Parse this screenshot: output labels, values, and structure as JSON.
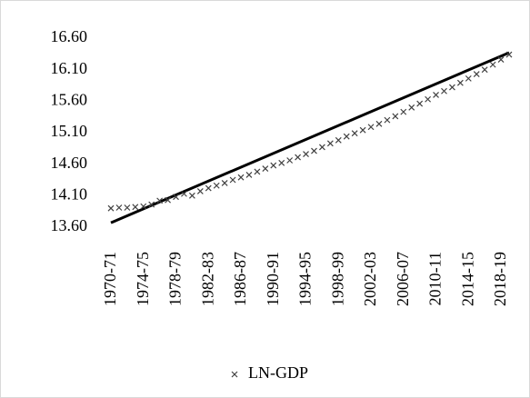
{
  "chart_data": {
    "type": "scatter",
    "categories": [
      "1970-71",
      null,
      null,
      null,
      "1974-75",
      null,
      null,
      null,
      "1978-79",
      null,
      null,
      null,
      "1982-83",
      null,
      null,
      null,
      "1986-87",
      null,
      null,
      null,
      "1990-91",
      null,
      null,
      null,
      "1994-95",
      null,
      null,
      null,
      "1998-99",
      null,
      null,
      null,
      "2002-03",
      null,
      null,
      null,
      "2006-07",
      null,
      null,
      null,
      "2010-11",
      null,
      null,
      null,
      "2014-15",
      null,
      null,
      null,
      "2018-19",
      null
    ],
    "series": [
      {
        "name": "LN-GDP",
        "color": "#404040",
        "values": [
          13.9,
          13.91,
          13.91,
          13.92,
          13.93,
          13.96,
          14.02,
          14.03,
          14.08,
          14.13,
          14.1,
          14.17,
          14.22,
          14.26,
          14.3,
          14.35,
          14.39,
          14.43,
          14.48,
          14.53,
          14.58,
          14.62,
          14.66,
          14.71,
          14.76,
          14.81,
          14.87,
          14.93,
          14.98,
          15.04,
          15.09,
          15.14,
          15.19,
          15.24,
          15.3,
          15.36,
          15.43,
          15.5,
          15.56,
          15.63,
          15.7,
          15.76,
          15.82,
          15.89,
          15.96,
          16.03,
          16.1,
          16.18,
          16.26,
          16.34
        ]
      }
    ],
    "trendline": {
      "color": "#000000",
      "start": 13.67,
      "end": 16.37
    },
    "ylim": [
      13.6,
      16.6
    ],
    "yticks": [
      {
        "value": 13.6,
        "label": "13.60"
      },
      {
        "value": 14.1,
        "label": "14.10"
      },
      {
        "value": 14.6,
        "label": "14.60"
      },
      {
        "value": 15.1,
        "label": "15.10"
      },
      {
        "value": 15.6,
        "label": "15.60"
      },
      {
        "value": 16.1,
        "label": "16.10"
      },
      {
        "value": 16.6,
        "label": "16.60"
      }
    ],
    "grid": false,
    "legend": "bottom"
  }
}
